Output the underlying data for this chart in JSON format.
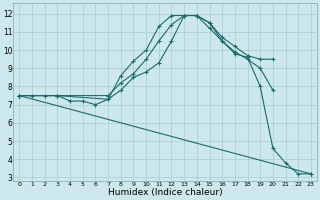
{
  "xlabel": "Humidex (Indice chaleur)",
  "bg_color": "#cce8ec",
  "grid_color": "#aacccc",
  "line_color": "#1a6b6b",
  "xlim": [
    -0.5,
    23.5
  ],
  "ylim": [
    2.8,
    12.6
  ],
  "xticks": [
    0,
    1,
    2,
    3,
    4,
    5,
    6,
    7,
    8,
    9,
    10,
    11,
    12,
    13,
    14,
    15,
    16,
    17,
    18,
    19,
    20,
    21,
    22,
    23
  ],
  "yticks": [
    3,
    4,
    5,
    6,
    7,
    8,
    9,
    10,
    11,
    12
  ],
  "line1_x": [
    0,
    1,
    2,
    3,
    4,
    5,
    6,
    7,
    8,
    9,
    10,
    11,
    12,
    13,
    14,
    15,
    16,
    17,
    18,
    19,
    20,
    21,
    22,
    23
  ],
  "line1_y": [
    7.5,
    7.5,
    7.5,
    7.5,
    7.2,
    7.2,
    7.0,
    7.3,
    8.6,
    9.4,
    10.0,
    11.3,
    11.9,
    11.9,
    11.9,
    11.5,
    10.5,
    9.8,
    9.6,
    8.0,
    4.6,
    3.8,
    3.2,
    3.2
  ],
  "line2_x": [
    0,
    3,
    7,
    8,
    9,
    10,
    11,
    12,
    13,
    14,
    15,
    16,
    17,
    18,
    19,
    20
  ],
  "line2_y": [
    7.5,
    7.5,
    7.5,
    8.2,
    8.7,
    9.5,
    10.5,
    11.4,
    11.9,
    11.9,
    11.5,
    10.7,
    10.2,
    9.7,
    9.5,
    9.5
  ],
  "line3_x": [
    0,
    3,
    7,
    8,
    9,
    10,
    11,
    12,
    13,
    14,
    15,
    16,
    17,
    18,
    19,
    20
  ],
  "line3_y": [
    7.5,
    7.5,
    7.3,
    7.8,
    8.5,
    8.8,
    9.3,
    10.5,
    11.9,
    11.9,
    11.2,
    10.5,
    9.9,
    9.5,
    9.0,
    7.8
  ],
  "line4_x": [
    0,
    23
  ],
  "line4_y": [
    7.5,
    3.2
  ]
}
